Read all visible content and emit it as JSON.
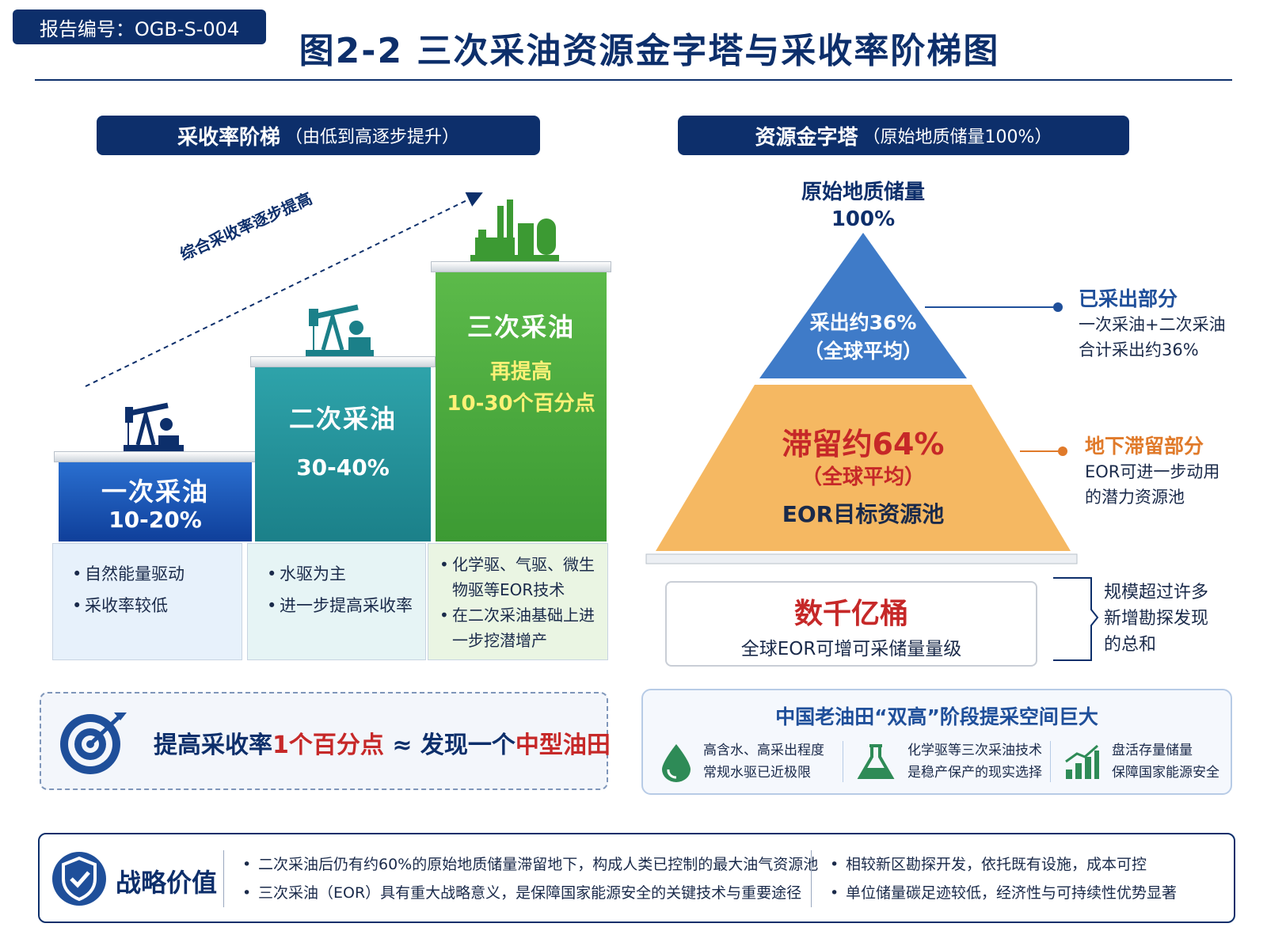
{
  "header": {
    "report_id": "报告编号：OGB-S-004",
    "title": "图2-2  三次采油资源金字塔与采收率阶梯图"
  },
  "ladder": {
    "heading": "采收率阶梯",
    "heading_note": "（由低到高逐步提升）",
    "trend_label": "综合采收率逐步提高",
    "steps": [
      {
        "name": "一次采油",
        "range": "10-20%",
        "bullets": [
          "自然能量驱动",
          "采收率较低"
        ]
      },
      {
        "name": "二次采油",
        "range": "30-40%",
        "bullets": [
          "水驱为主",
          "进一步提高采收率"
        ]
      },
      {
        "name": "三次采油",
        "range_line1": "再提高",
        "range_line2": "10-30个百分点",
        "bullets": [
          "化学驱、气驱、微生物驱等EOR技术",
          "在二次采油基础上进一步挖潜增产"
        ]
      }
    ]
  },
  "key_message": {
    "part1": "提高采收率",
    "part2": "1个百分点",
    "part3": " ≈ 发现一个",
    "part4": "中型油田"
  },
  "pyramid": {
    "heading": "资源金字塔",
    "heading_note": "（原始地质储量100%）",
    "top_label": "原始地质储量",
    "top_value": "100%",
    "upper_line1": "采出约36%",
    "upper_line2": "（全球平均）",
    "lower_line1": "滞留约64%",
    "lower_line2": "（全球平均）",
    "lower_line3": "EOR目标资源池",
    "mined_note_title": "已采出部分",
    "mined_note_1": "一次采油+二次采油",
    "mined_note_2": "合计采出约36%",
    "remain_note_title": "地下滞留部分",
    "remain_note_1": "EOR可进一步动用",
    "remain_note_2": "的潜力资源池",
    "colors": {
      "upper": "#3f7bc8",
      "lower": "#f5b862"
    }
  },
  "scale": {
    "big": "数千亿桶",
    "sub": "全球EOR可增可采储量量级",
    "note_1": "规模超过许多",
    "note_2": "新增勘探发现",
    "note_3": "的总和"
  },
  "china": {
    "title": "中国老油田“双高”阶段提采空间巨大",
    "items": [
      {
        "icon": "water-drop-icon",
        "line1": "高含水、高采出程度",
        "line2": "常规水驱已近极限"
      },
      {
        "icon": "flask-icon",
        "line1": "化学驱等三次采油技术",
        "line2": "是稳产保产的现实选择"
      },
      {
        "icon": "growth-chart-icon",
        "line1": "盘活存量储量",
        "line2": "保障国家能源安全"
      }
    ]
  },
  "strategy": {
    "title": "战略价值",
    "left": [
      "二次采油后仍有约60%的原始地质储量滞留地下，构成人类已控制的最大油气资源池",
      "三次采油（EOR）具有重大战略意义，是保障国家能源安全的关键技术与重要途径"
    ],
    "right": [
      "相较新区勘探开发，依托既有设施，成本可控",
      "单位储量碳足迹较低，经济性与可持续性优势显著"
    ]
  }
}
